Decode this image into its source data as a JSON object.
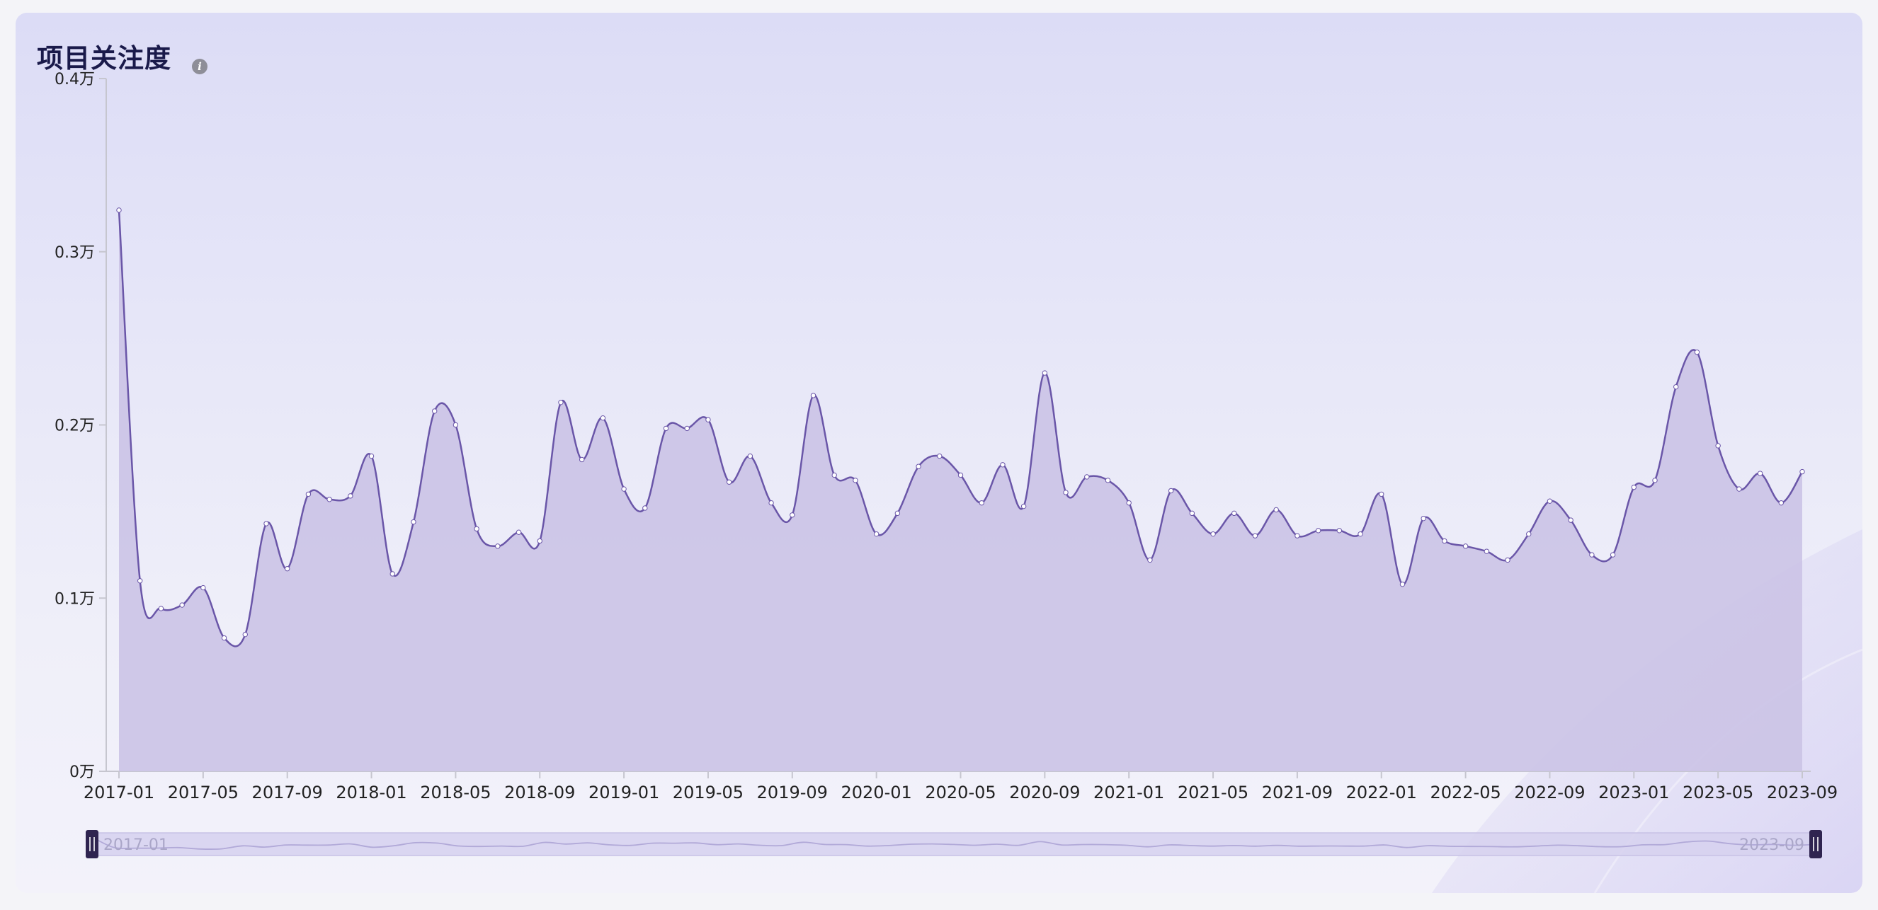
{
  "header": {
    "title": "项目关注度",
    "info_icon": "info-icon"
  },
  "colors": {
    "line": "#6a56a8",
    "area": "#cbc3e6",
    "handle": "#2f2450",
    "text": "#222222"
  },
  "chart_data": {
    "type": "area",
    "title": "项目关注度",
    "xlabel": "",
    "ylabel": "",
    "ylim": [
      0,
      4000
    ],
    "y_ticks": [
      0,
      1000,
      2000,
      3000,
      4000
    ],
    "y_tick_labels": [
      "0万",
      "0.1万",
      "0.2万",
      "0.3万",
      "0.4万"
    ],
    "x_tick_labels": [
      "2017-01",
      "2017-05",
      "2017-09",
      "2018-01",
      "2018-05",
      "2018-09",
      "2019-01",
      "2019-05",
      "2019-09",
      "2020-01",
      "2020-05",
      "2020-09",
      "2021-01",
      "2021-05",
      "2021-09",
      "2022-01",
      "2022-05",
      "2022-09",
      "2023-01",
      "2023-05",
      "2023-09"
    ],
    "grid": false,
    "smooth": true,
    "x": [
      "2017-01",
      "2017-02",
      "2017-03",
      "2017-04",
      "2017-05",
      "2017-06",
      "2017-07",
      "2017-08",
      "2017-09",
      "2017-10",
      "2017-11",
      "2017-12",
      "2018-01",
      "2018-02",
      "2018-03",
      "2018-04",
      "2018-05",
      "2018-06",
      "2018-07",
      "2018-08",
      "2018-09",
      "2018-10",
      "2018-11",
      "2018-12",
      "2019-01",
      "2019-02",
      "2019-03",
      "2019-04",
      "2019-05",
      "2019-06",
      "2019-07",
      "2019-08",
      "2019-09",
      "2019-10",
      "2019-11",
      "2019-12",
      "2020-01",
      "2020-02",
      "2020-03",
      "2020-04",
      "2020-05",
      "2020-06",
      "2020-07",
      "2020-08",
      "2020-09",
      "2020-10",
      "2020-11",
      "2020-12",
      "2021-01",
      "2021-02",
      "2021-03",
      "2021-04",
      "2021-05",
      "2021-06",
      "2021-07",
      "2021-08",
      "2021-09",
      "2021-10",
      "2021-11",
      "2021-12",
      "2022-01",
      "2022-02",
      "2022-03",
      "2022-04",
      "2022-05",
      "2022-06",
      "2022-07",
      "2022-08",
      "2022-09",
      "2022-10",
      "2022-11",
      "2022-12",
      "2023-01",
      "2023-02",
      "2023-03",
      "2023-04",
      "2023-05",
      "2023-06",
      "2023-07",
      "2023-08",
      "2023-09"
    ],
    "values": [
      3240,
      1100,
      940,
      960,
      1060,
      770,
      790,
      1430,
      1170,
      1600,
      1570,
      1590,
      1820,
      1140,
      1440,
      2080,
      2000,
      1400,
      1300,
      1380,
      1330,
      2130,
      1800,
      2040,
      1630,
      1520,
      1980,
      1980,
      2030,
      1670,
      1820,
      1550,
      1480,
      2170,
      1710,
      1680,
      1370,
      1490,
      1760,
      1820,
      1710,
      1550,
      1770,
      1530,
      2300,
      1610,
      1700,
      1680,
      1550,
      1220,
      1620,
      1490,
      1370,
      1490,
      1360,
      1510,
      1360,
      1390,
      1390,
      1370,
      1600,
      1080,
      1460,
      1330,
      1300,
      1270,
      1220,
      1370,
      1560,
      1450,
      1250,
      1250,
      1640,
      1680,
      2220,
      2420,
      1880,
      1630,
      1720,
      1550,
      1730
    ]
  },
  "data_zoom": {
    "start_label": "2017-01",
    "end_label": "2023-09"
  }
}
